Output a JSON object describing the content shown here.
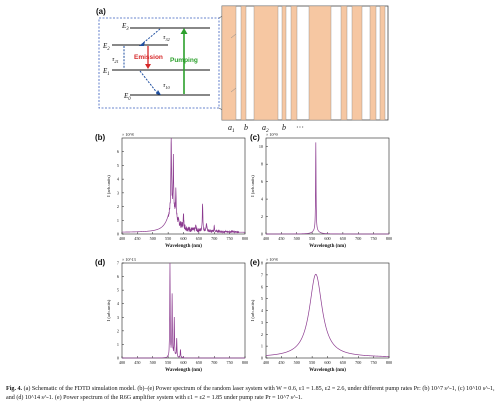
{
  "figure": {
    "panel_a": {
      "label": "(a)",
      "levels": [
        "E3",
        "E2",
        "E1",
        "E0"
      ],
      "lifetimes": [
        "τ32",
        "τ21",
        "τ10"
      ],
      "emission_label": "Emission",
      "pumping_label": "Pumping",
      "layer_labels": [
        "a1",
        "b",
        "a2",
        "b",
        "···"
      ],
      "colors": {
        "layer_fill": "#f6c7a2",
        "pump_arrow": "#2ca02c",
        "emission_arrow": "#d62728",
        "relax_arrow": "#1f4fa0",
        "callout_border": "#3a5fbf"
      }
    },
    "caption": {
      "label": "Fig. 4.",
      "text": "(a) Schematic of the FDTD simulation model. (b)–(e) Power spectrum of the random laser system with W = 0.6, ε1 = 1.85, ε2 = 2.6, under different pump rates Pr: (b) 10^7 s^-1, (c) 10^10 s^-1, and (d) 10^14 s^-1. (e) Power spectrum of the R6G amplifier system with ε1 = ε2 = 1.85 under pump rate Pr = 10^7 s^-1."
    }
  },
  "chart_data": [
    {
      "panel": "(b)",
      "type": "line",
      "exponent": "× 10^8",
      "xlabel": "Wavelength (nm)",
      "ylabel": "I (arb.units)",
      "xlim": [
        400,
        800
      ],
      "ylim": [
        0,
        7
      ],
      "xticks": [
        400,
        450,
        500,
        550,
        600,
        650,
        700,
        750,
        800
      ],
      "yticks": [
        0,
        1,
        2,
        3,
        4,
        5,
        6
      ],
      "series_color": "#8b3a8f",
      "peaks": [
        [
          560,
          6.8
        ],
        [
          567,
          5.4
        ],
        [
          575,
          3.3
        ],
        [
          600,
          2.2
        ],
        [
          640,
          1.6
        ],
        [
          662,
          3.4
        ],
        [
          675,
          1.9
        ],
        [
          700,
          1.6
        ],
        [
          708,
          1.3
        ],
        [
          750,
          1.2
        ]
      ]
    },
    {
      "panel": "(c)",
      "type": "line",
      "exponent": "× 10^9",
      "xlabel": "Wavelength (nm)",
      "ylabel": "I (arb.units)",
      "xlim": [
        400,
        800
      ],
      "ylim": [
        0,
        11
      ],
      "xticks": [
        400,
        450,
        500,
        550,
        600,
        650,
        700,
        750,
        800
      ],
      "yticks": [
        0,
        2,
        4,
        6,
        8,
        10
      ],
      "series_color": "#8b3a8f",
      "peaks": [
        [
          562,
          10.5
        ]
      ]
    },
    {
      "panel": "(d)",
      "type": "line",
      "exponent": "× 10^13",
      "xlabel": "Wavelength (nm)",
      "ylabel": "I (arb.units)",
      "xlim": [
        400,
        800
      ],
      "ylim": [
        0,
        7
      ],
      "xticks": [
        400,
        450,
        500,
        550,
        600,
        650,
        700,
        750,
        800
      ],
      "yticks": [
        0,
        1,
        2,
        3,
        4,
        5,
        6,
        7
      ],
      "series_color": "#8b3a8f",
      "peaks": [
        [
          556,
          6.8
        ],
        [
          563,
          4.6
        ],
        [
          570,
          2.9
        ],
        [
          578,
          1.4
        ],
        [
          590,
          0.6
        ]
      ]
    },
    {
      "panel": "(e)",
      "type": "line",
      "exponent": "× 10^8",
      "xlabel": "Wavelength (nm)",
      "ylabel": "I (arb.units)",
      "xlim": [
        400,
        800
      ],
      "ylim": [
        0,
        8
      ],
      "xticks": [
        400,
        450,
        500,
        550,
        600,
        650,
        700,
        750,
        800
      ],
      "yticks": [
        0,
        1,
        2,
        3,
        4,
        5,
        6,
        7,
        8
      ],
      "series_color": "#8b3a8f",
      "peaks": [
        [
          562,
          7.0
        ]
      ]
    }
  ]
}
